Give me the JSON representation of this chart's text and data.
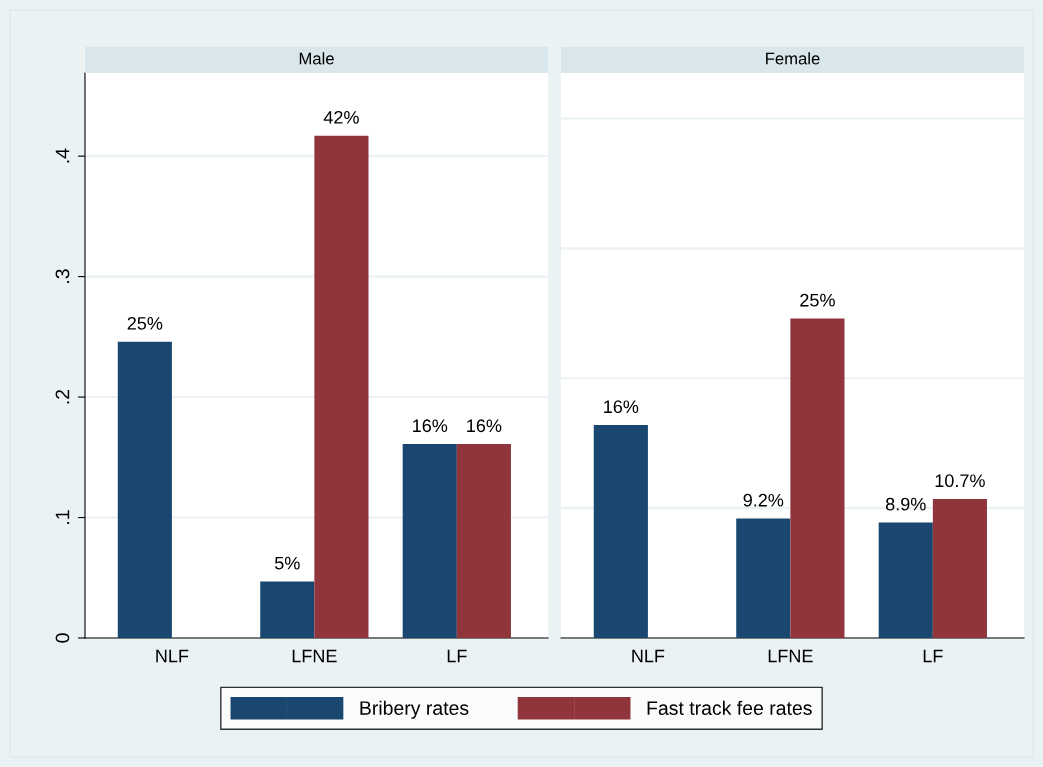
{
  "chart_data": [
    {
      "type": "bar",
      "title": "Male",
      "categories": [
        "NLF",
        "LFNE",
        "LF"
      ],
      "series": [
        {
          "name": "Bribery rates",
          "color": "#1a476f",
          "values": [
            0.246,
            0.047,
            0.161
          ],
          "value_labels": [
            "25%",
            "5%",
            "16%"
          ]
        },
        {
          "name": "Fast track fee rates",
          "color": "#90353b",
          "values": [
            null,
            0.417,
            0.161
          ],
          "value_labels": [
            null,
            "42%",
            "16%"
          ]
        }
      ],
      "ylim": [
        0,
        0.469
      ],
      "yticks": [
        {
          "value": 0,
          "label": "0"
        },
        {
          "value": 0.1,
          "label": ".1"
        },
        {
          "value": 0.2,
          "label": ".2"
        },
        {
          "value": 0.3,
          "label": ".3"
        },
        {
          "value": 0.4,
          "label": ".4"
        }
      ],
      "grid": "y",
      "legend": "bottom"
    },
    {
      "type": "bar",
      "title": "Female",
      "categories": [
        "NLF",
        "LFNE",
        "LF"
      ],
      "series": [
        {
          "name": "Bribery rates",
          "color": "#1a476f",
          "values": [
            0.164,
            0.092,
            0.089
          ],
          "value_labels": [
            "16%",
            "9.2%",
            "8.9%"
          ]
        },
        {
          "name": "Fast track fee rates",
          "color": "#90353b",
          "values": [
            null,
            0.246,
            0.107
          ],
          "value_labels": [
            null,
            "25%",
            "10.7%"
          ]
        }
      ],
      "ylim": [
        0,
        0.435
      ],
      "yticks": [
        {
          "value": 0,
          "label": null
        },
        {
          "value": 0.1,
          "label": null
        },
        {
          "value": 0.2,
          "label": null
        },
        {
          "value": 0.3,
          "label": null
        },
        {
          "value": 0.4,
          "label": null
        }
      ],
      "grid": "y",
      "tick_labels": "x"
    }
  ]
}
